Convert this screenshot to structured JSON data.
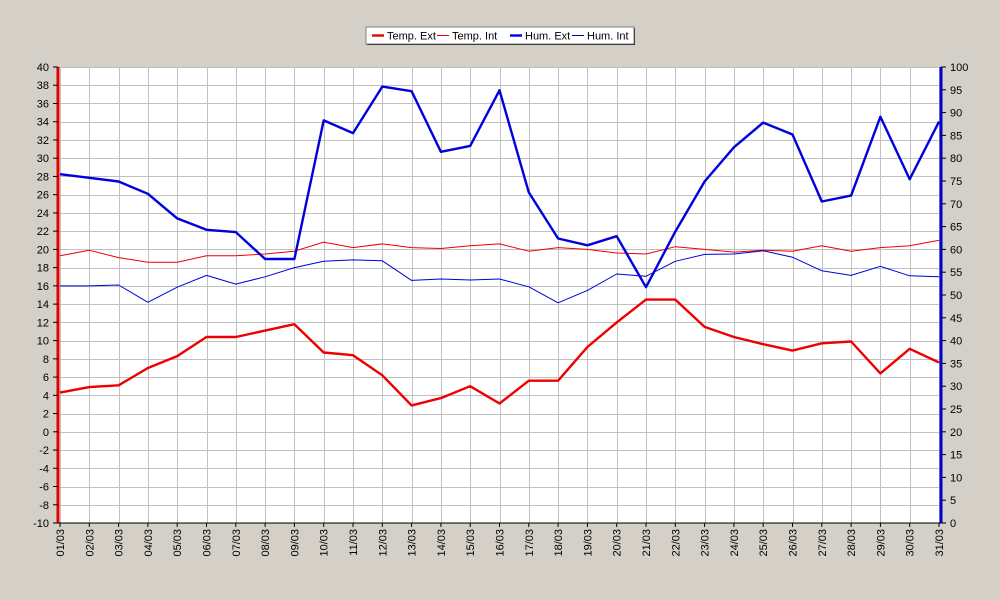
{
  "chart_data": {
    "type": "line",
    "categories": [
      "01/03",
      "02/03",
      "03/03",
      "04/03",
      "05/03",
      "06/03",
      "07/03",
      "08/03",
      "09/03",
      "10/03",
      "11/03",
      "12/03",
      "13/03",
      "14/03",
      "15/03",
      "16/03",
      "17/03",
      "18/03",
      "19/03",
      "20/03",
      "21/03",
      "22/03",
      "23/03",
      "24/03",
      "25/03",
      "26/03",
      "27/03",
      "28/03",
      "29/03",
      "30/03",
      "31/03"
    ],
    "y_left": {
      "min": -10,
      "max": 40,
      "step": 2,
      "color": "#e00000"
    },
    "y_right": {
      "min": 0,
      "max": 100,
      "step": 5,
      "color": "#0000cc"
    },
    "grid": true,
    "legend_placement": "top-center",
    "series": [
      {
        "name": "Temp. Ext",
        "axis": "left",
        "color": "#ee0000",
        "weight": "thick",
        "values": [
          4.3,
          4.9,
          5.1,
          7.0,
          8.3,
          10.4,
          10.4,
          11.1,
          11.8,
          8.7,
          8.4,
          6.2,
          2.9,
          3.7,
          5.0,
          3.1,
          5.6,
          5.6,
          9.3,
          12.0,
          14.5,
          14.5,
          11.5,
          10.4,
          9.6,
          8.9,
          9.7,
          9.9,
          6.4,
          9.1,
          7.6
        ]
      },
      {
        "name": "Temp. Int",
        "axis": "left",
        "color": "#ee0000",
        "weight": "thin",
        "values": [
          19.3,
          19.9,
          19.1,
          18.6,
          18.6,
          19.3,
          19.3,
          19.5,
          19.8,
          20.8,
          20.2,
          20.6,
          20.2,
          20.1,
          20.4,
          20.6,
          19.8,
          20.2,
          20.0,
          19.6,
          19.5,
          20.3,
          20.0,
          19.7,
          19.9,
          19.8,
          20.4,
          19.8,
          20.2,
          20.4,
          21.0
        ]
      },
      {
        "name": "Hum. Ext",
        "axis": "right",
        "color": "#0000dd",
        "weight": "thick",
        "values": [
          76.5,
          75.7,
          74.9,
          72.2,
          66.8,
          64.3,
          63.8,
          57.9,
          57.9,
          88.3,
          85.5,
          95.7,
          94.7,
          81.4,
          82.7,
          94.9,
          72.5,
          62.4,
          60.9,
          62.9,
          51.7,
          63.9,
          74.9,
          82.4,
          87.8,
          85.2,
          70.5,
          71.8,
          89.1,
          75.4,
          88.0
        ]
      },
      {
        "name": "Hum. Int",
        "axis": "right",
        "color": "#0000dd",
        "weight": "thin",
        "values": [
          52.0,
          52.0,
          52.2,
          48.4,
          51.7,
          54.3,
          52.4,
          54.0,
          56.0,
          57.4,
          57.7,
          57.5,
          53.2,
          53.5,
          53.3,
          53.5,
          51.8,
          48.3,
          51.0,
          54.6,
          54.1,
          57.4,
          58.9,
          59.0,
          59.7,
          58.3,
          55.3,
          54.3,
          56.3,
          54.2,
          54.0
        ]
      }
    ]
  }
}
